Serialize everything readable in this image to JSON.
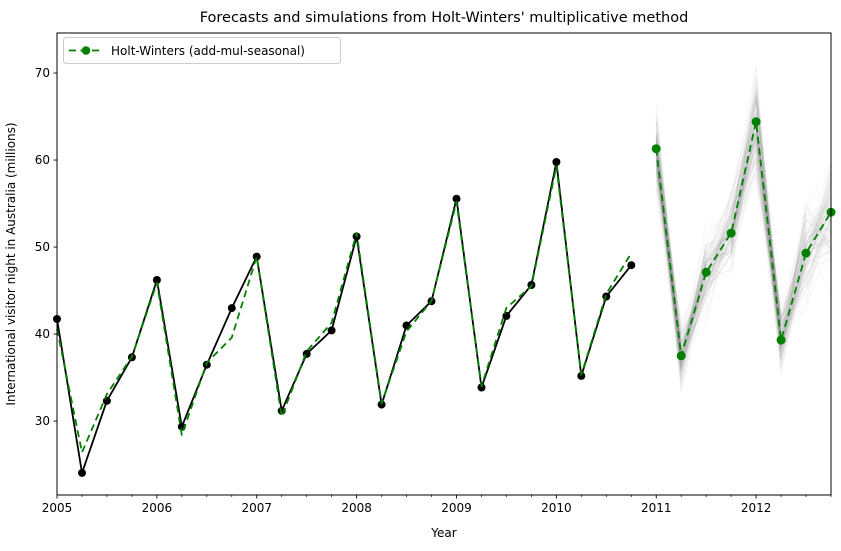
{
  "figure": {
    "background": "#ffffff"
  },
  "chart_data": {
    "type": "line",
    "title": "Forecasts and simulations from Holt-Winters' multiplicative method",
    "xlabel": "Year",
    "ylabel": "International visitor night in Australia (millions)",
    "xlim": [
      2005,
      2012.75
    ],
    "ylim": [
      21.5,
      74.6
    ],
    "grid": false,
    "x_axis": {
      "tick_values": [
        2005,
        2006,
        2007,
        2008,
        2009,
        2010,
        2011,
        2012
      ],
      "tick_labels": [
        "2005",
        "2006",
        "2007",
        "2008",
        "2009",
        "2010",
        "2011",
        "2012"
      ],
      "minor_interval": 0.25
    },
    "y_axis": {
      "tick_values": [
        30,
        40,
        50,
        60,
        70
      ],
      "tick_labels": [
        "30",
        "40",
        "50",
        "60",
        "70"
      ]
    },
    "legend": {
      "location": "upper left",
      "label": "Holt-Winters (add-mul-seasonal)",
      "swatch_color": "#008000"
    },
    "colors": {
      "observed": "#000000",
      "fitted": "#008000",
      "forecast": "#008000",
      "simulation": "#808080",
      "spine": "#000000"
    },
    "series": [
      {
        "name": "observed",
        "color": "#000000",
        "linestyle": "solid",
        "marker": "o",
        "x": [
          2005.0,
          2005.25,
          2005.5,
          2005.75,
          2006.0,
          2006.25,
          2006.5,
          2006.75,
          2007.0,
          2007.25,
          2007.5,
          2007.75,
          2008.0,
          2008.25,
          2008.5,
          2008.75,
          2009.0,
          2009.25,
          2009.5,
          2009.75,
          2010.0,
          2010.25,
          2010.5,
          2010.75
        ],
        "values": [
          41.73,
          24.04,
          32.33,
          37.33,
          46.21,
          29.35,
          36.48,
          42.98,
          48.9,
          31.18,
          37.72,
          40.42,
          51.21,
          31.89,
          40.98,
          43.77,
          55.56,
          33.85,
          42.08,
          45.64,
          59.77,
          35.19,
          44.32,
          47.91
        ]
      },
      {
        "name": "fitted",
        "color": "#008000",
        "linestyle": "dashed",
        "marker": null,
        "x": [
          2005.0,
          2005.25,
          2005.5,
          2005.75,
          2006.0,
          2006.25,
          2006.5,
          2006.75,
          2007.0,
          2007.25,
          2007.5,
          2007.75,
          2008.0,
          2008.25,
          2008.5,
          2008.75,
          2009.0,
          2009.25,
          2009.5,
          2009.75,
          2010.0,
          2010.25,
          2010.5,
          2010.75
        ],
        "values": [
          40.6,
          26.4,
          33.1,
          37.4,
          45.9,
          28.4,
          36.7,
          39.6,
          48.9,
          30.5,
          38.0,
          41.3,
          51.6,
          32.0,
          40.3,
          43.8,
          55.2,
          34.0,
          43.0,
          45.5,
          59.3,
          35.3,
          44.6,
          49.3
        ]
      },
      {
        "name": "forecast",
        "color": "#008000",
        "linestyle": "dashed",
        "marker": "o",
        "x": [
          2011.0,
          2011.25,
          2011.5,
          2011.75,
          2012.0,
          2012.25,
          2012.5,
          2012.75
        ],
        "values": [
          61.3,
          37.5,
          47.1,
          51.6,
          64.4,
          39.3,
          49.3,
          54.0
        ]
      }
    ],
    "simulations": {
      "count": 100,
      "seed": 20,
      "color": "#808080",
      "opacity": 0.055,
      "x": [
        2011.0,
        2011.25,
        2011.5,
        2011.75,
        2012.0,
        2012.25,
        2012.5,
        2012.75
      ],
      "mean": [
        61.3,
        37.5,
        47.1,
        51.6,
        64.4,
        39.3,
        49.3,
        54.0
      ],
      "sigma_pct": [
        0.035,
        0.04,
        0.042,
        0.044,
        0.046,
        0.048,
        0.05,
        0.05
      ]
    }
  }
}
